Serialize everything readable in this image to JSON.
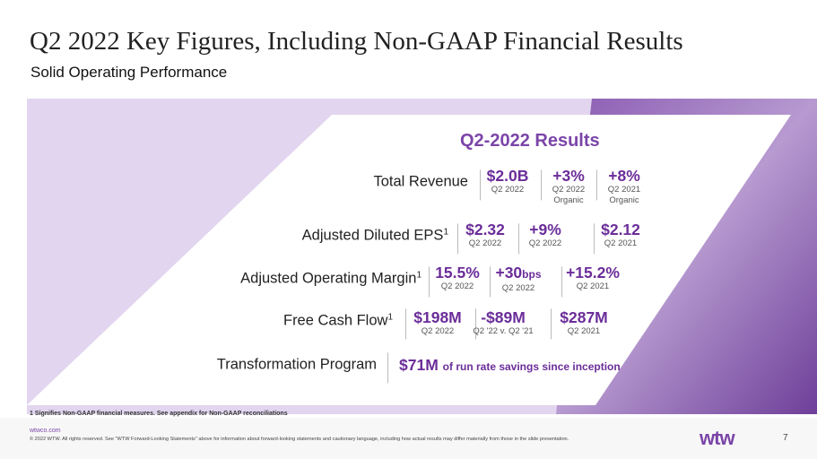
{
  "header": {
    "title": "Q2 2022 Key Figures, Including Non-GAAP Financial Results",
    "subtitle": "Solid Operating Performance"
  },
  "results": {
    "title": "Q2-2022 Results",
    "rows": [
      {
        "label": "Total Revenue",
        "metrics": [
          {
            "value": "$2.0B",
            "note": [
              "Q2 2022"
            ]
          },
          {
            "value": "+3%",
            "note": [
              "Q2 2022",
              "Organic"
            ]
          },
          {
            "value": "+8%",
            "note": [
              "Q2 2021",
              "Organic"
            ]
          }
        ]
      },
      {
        "label": "Adjusted Diluted EPS",
        "sup": "1",
        "metrics": [
          {
            "value": "$2.32",
            "note": [
              "Q2 2022"
            ]
          },
          {
            "value": "+9%",
            "note": [
              "Q2 2022"
            ]
          },
          {
            "value": "$2.12",
            "note": [
              "Q2 2021"
            ]
          }
        ]
      },
      {
        "label": "Adjusted Operating Margin",
        "sup": "1",
        "metrics": [
          {
            "value": "15.5%",
            "note": [
              "Q2 2022"
            ]
          },
          {
            "value": "+30",
            "unit": "bps",
            "note": [
              "Q2 2022"
            ]
          },
          {
            "value": "+15.2%",
            "note": [
              "Q2 2021"
            ]
          }
        ]
      },
      {
        "label": "Free Cash Flow",
        "sup": "1",
        "metrics": [
          {
            "value": "$198M",
            "note": [
              "Q2 2022"
            ]
          },
          {
            "value": "-$89M",
            "note": [
              "Q2 '22 v. Q2 '21"
            ]
          },
          {
            "value": "$287M",
            "note": [
              "Q2 2021"
            ]
          }
        ]
      },
      {
        "label": "Transformation Program",
        "metrics": [
          {
            "value": "$71M",
            "description": "of run rate savings since inception"
          }
        ]
      }
    ]
  },
  "footnote": "1 Signifies Non-GAAP financial measures. See appendix for Non-GAAP reconciliations",
  "footer": {
    "url": "wtwco.com",
    "legal": "© 2022 WTW. All rights reserved. See \"WTW Forward-Looking Statements\" above for information about forward-looking statements and cautionary language, including how actual results may differ materially from those in the slide presentation.",
    "logo": "wtw",
    "page": "7"
  }
}
